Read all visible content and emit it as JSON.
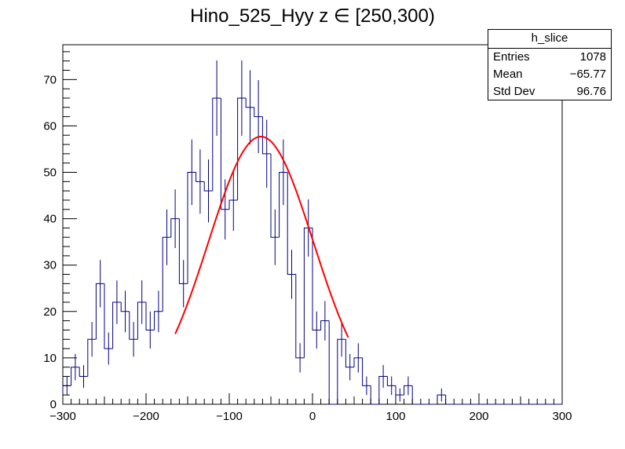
{
  "title": "Hino_525_Hyy z  ∈ [250,300)",
  "stats": {
    "name": "h_slice",
    "rows": [
      {
        "label": "Entries",
        "value": "1078"
      },
      {
        "label": "Mean",
        "value": "−65.77"
      },
      {
        "label": "Std Dev",
        "value": "96.76"
      }
    ]
  },
  "colors": {
    "hist": "#000080",
    "fit": "#ff0000",
    "axis": "#000000"
  },
  "chart_data": {
    "type": "bar",
    "xlim": [
      -300,
      300
    ],
    "ylim": [
      0,
      77.5
    ],
    "xticks": [
      -300,
      -200,
      -100,
      0,
      100,
      200,
      300
    ],
    "xtick_labels": [
      "−300",
      "−200",
      "−100",
      "0",
      "100",
      "200",
      "300"
    ],
    "yticks": [
      0,
      10,
      20,
      30,
      40,
      50,
      60,
      70
    ],
    "ytick_labels": [
      "0",
      "10",
      "20",
      "30",
      "40",
      "50",
      "60",
      "70"
    ],
    "bin_width": 10,
    "bin_start": -300,
    "values": [
      4,
      8,
      6,
      14,
      26,
      12,
      22,
      20,
      14,
      22,
      16,
      20,
      36,
      40,
      26,
      50,
      48,
      46,
      66,
      42,
      44,
      66,
      64,
      62,
      54,
      36,
      50,
      28,
      10,
      38,
      16,
      18,
      0,
      14,
      8,
      10,
      4,
      0,
      6,
      4,
      2,
      4,
      0,
      0,
      0,
      2,
      0,
      0,
      0,
      0,
      0,
      0,
      0,
      0,
      0,
      0,
      0,
      0,
      0,
      0
    ],
    "fit": {
      "type": "gaussian",
      "constant": 57.7,
      "mean": -62,
      "sigma": 63,
      "range": [
        -165,
        43
      ]
    }
  }
}
